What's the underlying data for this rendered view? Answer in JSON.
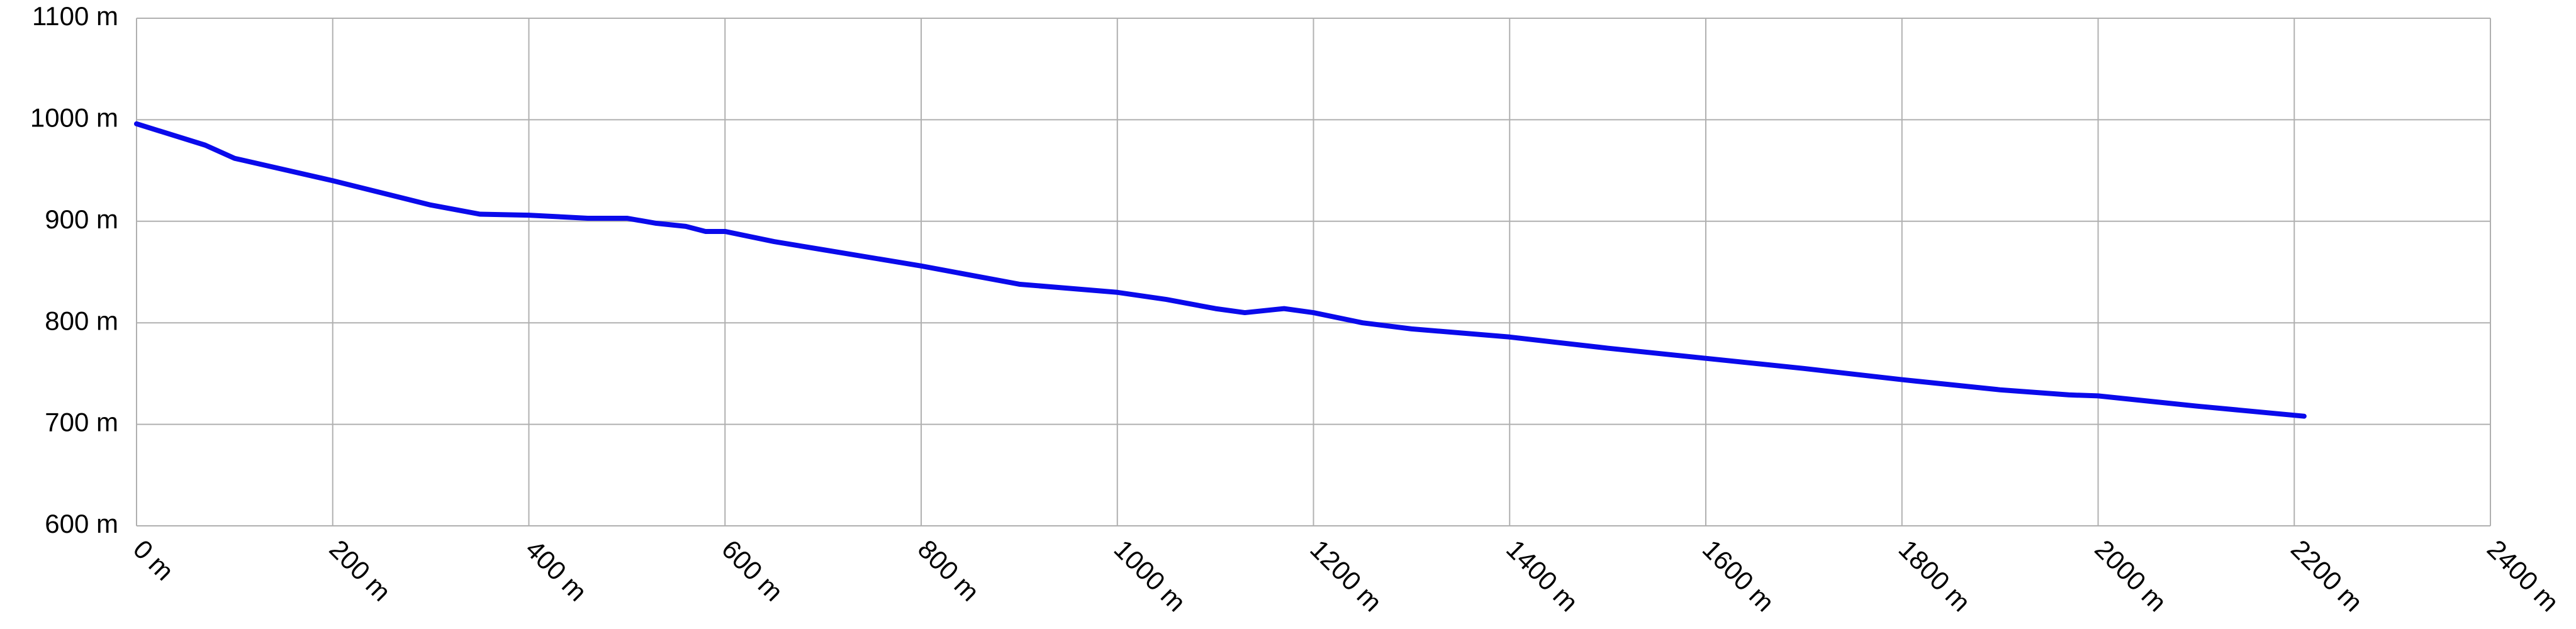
{
  "chart_data": {
    "type": "line",
    "x": [
      0,
      70,
      100,
      200,
      300,
      350,
      400,
      460,
      500,
      530,
      560,
      580,
      600,
      650,
      700,
      800,
      900,
      1000,
      1050,
      1100,
      1130,
      1170,
      1200,
      1250,
      1300,
      1400,
      1500,
      1600,
      1700,
      1800,
      1900,
      1970,
      2000,
      2100,
      2210
    ],
    "series": [
      {
        "color": "#0a0aeb",
        "values": [
          996,
          975,
          962,
          940,
          916,
          907,
          906,
          903,
          903,
          898,
          895,
          890,
          890,
          880,
          872,
          856,
          838,
          830,
          823,
          814,
          810,
          814,
          810,
          800,
          794,
          786,
          775,
          765,
          755,
          744,
          734,
          729,
          728,
          718,
          708
        ]
      }
    ],
    "xlim": [
      0,
      2400
    ],
    "ylim": [
      600,
      1100
    ],
    "xticks": [
      {
        "value": 0,
        "label": "0 m"
      },
      {
        "value": 200,
        "label": "200 m"
      },
      {
        "value": 400,
        "label": "400 m"
      },
      {
        "value": 600,
        "label": "600 m"
      },
      {
        "value": 800,
        "label": "800 m"
      },
      {
        "value": 1000,
        "label": "1000 m"
      },
      {
        "value": 1200,
        "label": "1200 m"
      },
      {
        "value": 1400,
        "label": "1400 m"
      },
      {
        "value": 1600,
        "label": "1600 m"
      },
      {
        "value": 1800,
        "label": "1800 m"
      },
      {
        "value": 2000,
        "label": "2000 m"
      },
      {
        "value": 2200,
        "label": "2200 m"
      },
      {
        "value": 2400,
        "label": "2400 m"
      }
    ],
    "yticks": [
      {
        "value": 600,
        "label": "600 m"
      },
      {
        "value": 700,
        "label": "700 m"
      },
      {
        "value": 800,
        "label": "800 m"
      },
      {
        "value": 900,
        "label": "900 m"
      },
      {
        "value": 1000,
        "label": "1000 m"
      },
      {
        "value": 1100,
        "label": "1100 m"
      }
    ],
    "grid": true
  }
}
